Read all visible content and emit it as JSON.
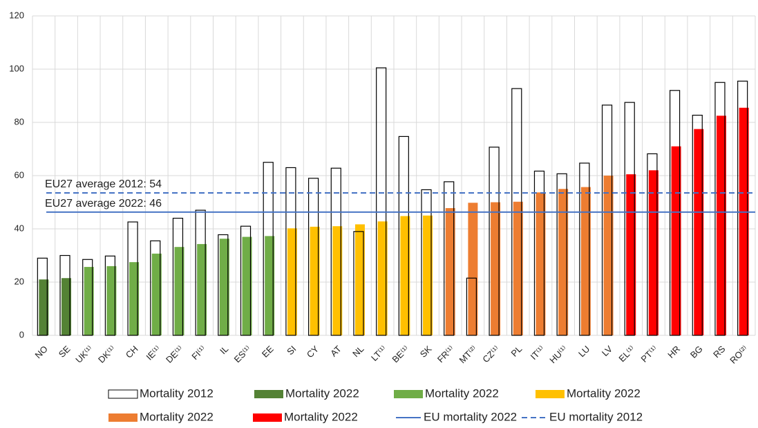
{
  "chart_data": {
    "type": "bar",
    "categories": [
      "NO",
      "SE",
      "UK⁽¹⁾",
      "DK⁽¹⁾",
      "CH",
      "IE⁽¹⁾",
      "DE⁽¹⁾",
      "FI⁽¹⁾",
      "IL",
      "ES⁽¹⁾",
      "EE",
      "SI",
      "CY",
      "AT",
      "NL",
      "LT⁽¹⁾",
      "BE⁽¹⁾",
      "SK",
      "FR⁽¹⁾",
      "MT⁽²⁾",
      "CZ⁽¹⁾",
      "PL",
      "IT⁽¹⁾",
      "HU⁽¹⁾",
      "LU",
      "LV",
      "EL⁽¹⁾",
      "PT⁽¹⁾",
      "HR",
      "BG",
      "RS",
      "RO⁽²⁾"
    ],
    "series": [
      {
        "name": "Mortality 2022",
        "color": "#548235",
        "values": [
          21,
          21.5,
          null,
          null,
          null,
          null,
          null,
          null,
          null,
          null,
          null,
          null,
          null,
          null,
          null,
          null,
          null,
          null,
          null,
          null,
          null,
          null,
          null,
          null,
          null,
          null,
          null,
          null,
          null,
          null,
          null,
          null
        ]
      },
      {
        "name": "Mortality 2022",
        "color": "#70ad47",
        "values": [
          null,
          null,
          25.7,
          26,
          27.5,
          30.7,
          33.2,
          34.3,
          36.3,
          37,
          37.3,
          null,
          null,
          null,
          null,
          null,
          null,
          null,
          null,
          null,
          null,
          null,
          null,
          null,
          null,
          null,
          null,
          null,
          null,
          null,
          null,
          null
        ]
      },
      {
        "name": "Mortality 2022",
        "color": "#ffc000",
        "values": [
          null,
          null,
          null,
          null,
          null,
          null,
          null,
          null,
          null,
          null,
          null,
          40.2,
          40.8,
          41,
          41.7,
          42.8,
          44.8,
          45,
          null,
          null,
          null,
          null,
          null,
          null,
          null,
          null,
          null,
          null,
          null,
          null,
          null,
          null
        ]
      },
      {
        "name": "Mortality 2022",
        "color": "#ed7d31",
        "values": [
          null,
          null,
          null,
          null,
          null,
          null,
          null,
          null,
          null,
          null,
          null,
          null,
          null,
          null,
          null,
          null,
          null,
          null,
          47.8,
          49.8,
          50,
          50.2,
          53.7,
          55,
          55.7,
          60,
          null,
          null,
          null,
          null,
          null,
          null
        ]
      },
      {
        "name": "Mortality 2022",
        "color": "#ff0000",
        "values": [
          null,
          null,
          null,
          null,
          null,
          null,
          null,
          null,
          null,
          null,
          null,
          null,
          null,
          null,
          null,
          null,
          null,
          null,
          null,
          null,
          null,
          null,
          null,
          null,
          null,
          null,
          60.5,
          62,
          71,
          77.5,
          82.5,
          85.5
        ]
      },
      {
        "name": "Mortality 2012",
        "color": "#000000",
        "style": "outline",
        "values": [
          29,
          30,
          28.5,
          29.8,
          42.6,
          35.5,
          44,
          47,
          37.8,
          41,
          65,
          63,
          59,
          62.8,
          39,
          100.5,
          74.7,
          54.7,
          57.7,
          21.5,
          70.7,
          92.7,
          61.7,
          60.7,
          64.7,
          86.5,
          87.5,
          68.2,
          92,
          82.7,
          95,
          95.5
        ]
      }
    ],
    "lines": [
      {
        "name": "EU mortality 2022",
        "color": "#4472c4",
        "dashed": false,
        "value": 46.3,
        "annotation": "EU27 average 2022: 46"
      },
      {
        "name": "EU mortality 2012",
        "color": "#4472c4",
        "dashed": true,
        "value": 53.5,
        "annotation": "EU27 average 2012: 54"
      }
    ],
    "ylim": [
      0,
      120
    ],
    "yticks": [
      0,
      20,
      40,
      60,
      80,
      100,
      120
    ],
    "grid": true
  }
}
